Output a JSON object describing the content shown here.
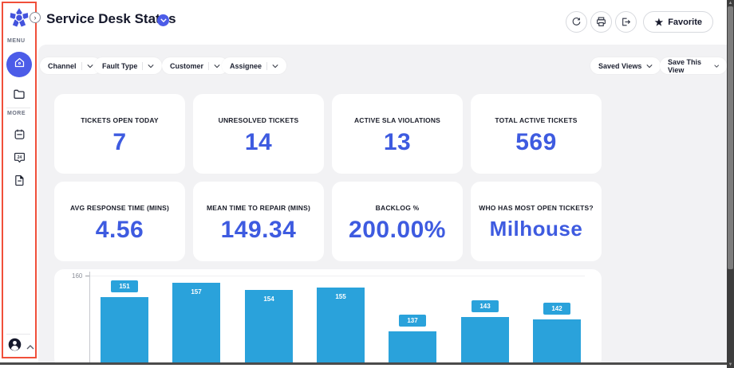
{
  "sidebar": {
    "menu_label": "MENU",
    "more_label": "MORE",
    "menu_items": [
      {
        "icon": "home-icon",
        "active": true
      },
      {
        "icon": "folder-icon",
        "active": false
      }
    ],
    "more_items": [
      {
        "icon": "calendar-icon"
      },
      {
        "icon": "support-24-icon"
      },
      {
        "icon": "report-icon"
      }
    ],
    "expand_glyph": "›"
  },
  "header": {
    "title": "Service Desk Status",
    "actions": [
      {
        "icon": "refresh-icon"
      },
      {
        "icon": "print-icon"
      },
      {
        "icon": "export-icon"
      }
    ],
    "favorite_label": "Favorite",
    "favorite_star": "★"
  },
  "filters": [
    {
      "label": "Channel"
    },
    {
      "label": "Fault Type"
    },
    {
      "label": "Customer"
    },
    {
      "label": "Assignee"
    }
  ],
  "views": {
    "saved_views_label": "Saved Views",
    "save_view_label": "Save This View"
  },
  "kpis": [
    {
      "label": "TICKETS OPEN TODAY",
      "value": "7",
      "text_style": false
    },
    {
      "label": "UNRESOLVED TICKETS",
      "value": "14",
      "text_style": false
    },
    {
      "label": "ACTIVE SLA VIOLATIONS",
      "value": "13",
      "text_style": false
    },
    {
      "label": "TOTAL ACTIVE TICKETS",
      "value": "569",
      "text_style": false
    },
    {
      "label": "AVG RESPONSE TIME (MINS)",
      "value": "4.56",
      "text_style": false
    },
    {
      "label": "MEAN TIME TO REPAIR (MINS)",
      "value": "149.34",
      "text_style": false
    },
    {
      "label": "BACKLOG %",
      "value": "200.00%",
      "text_style": false
    },
    {
      "label": "WHO HAS MOST OPEN TICKETS?",
      "value": "Milhouse",
      "text_style": true
    }
  ],
  "chart_data": {
    "type": "bar",
    "values": [
      151,
      157,
      154,
      155,
      137,
      143,
      142
    ],
    "label_positions": [
      "above",
      "inside",
      "inside",
      "inside",
      "above",
      "above",
      "above"
    ],
    "y_axis_top_tick": "160",
    "ylim_visible": [
      160,
      null
    ],
    "note": "chart bottom cut off by viewport",
    "bar_color": "#2aa2db",
    "grid": true,
    "legend": "none"
  },
  "colors": {
    "accent_blue": "#3e5be0",
    "active_nav_blue": "#4c5ce8",
    "bar_blue": "#2aa2db",
    "annotation_red": "#f04f3a",
    "page_bg": "#f2f2f4"
  }
}
